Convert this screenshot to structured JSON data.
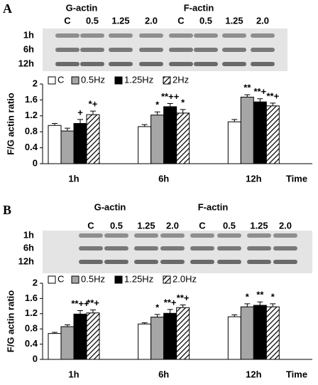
{
  "chart_data": [
    {
      "type": "bar",
      "panel_label": "A",
      "blot": {
        "groups": [
          "G-actin",
          "F-actin"
        ],
        "lanes": [
          "C",
          "0.5",
          "1.25",
          "2.0",
          "C",
          "0.5",
          "1.25",
          "2.0"
        ],
        "rows": [
          "1h",
          "6h",
          "12h"
        ]
      },
      "ylabel": "F/G actin ratio",
      "xlabel": "Time",
      "categories": [
        "1h",
        "6h",
        "12h"
      ],
      "ylim": [
        0,
        2
      ],
      "yticks": [
        0,
        0.4,
        0.8,
        1.2,
        1.6,
        2
      ],
      "series": [
        {
          "name": "C",
          "color": "#ffffff",
          "values": [
            0.96,
            0.93,
            1.05
          ],
          "errors": [
            0.05,
            0.05,
            0.06
          ],
          "annotations": [
            null,
            null,
            null
          ]
        },
        {
          "name": "0.5Hz",
          "color": "#a6a6a6",
          "values": [
            0.82,
            1.22,
            1.67
          ],
          "errors": [
            0.07,
            0.08,
            0.06
          ],
          "annotations": [
            null,
            "*",
            "**"
          ]
        },
        {
          "name": "1.25Hz",
          "color": "#000000",
          "values": [
            1.01,
            1.43,
            1.55
          ],
          "errors": [
            0.1,
            0.08,
            0.08
          ],
          "annotations": [
            "+",
            "**++",
            "**+"
          ]
        },
        {
          "name": "2Hz",
          "color": "#000000",
          "pattern": "hatch",
          "values": [
            1.23,
            1.27,
            1.45
          ],
          "errors": [
            0.09,
            0.09,
            0.07
          ],
          "annotations": [
            "*+",
            "*",
            "**+"
          ]
        }
      ]
    },
    {
      "type": "bar",
      "panel_label": "B",
      "blot": {
        "groups": [
          "G-actin",
          "F-actin"
        ],
        "lanes": [
          "C",
          "0.5",
          "1.25",
          "2.0",
          "C",
          "0.5",
          "1.25",
          "2.0"
        ],
        "rows": [
          "1h",
          "6h",
          "12h"
        ]
      },
      "ylabel": "F/G actin ratio",
      "xlabel": "Time",
      "categories": [
        "1h",
        "6h",
        "12h"
      ],
      "ylim": [
        0,
        2
      ],
      "yticks": [
        0,
        0.4,
        0.8,
        1.2,
        1.6,
        2
      ],
      "series": [
        {
          "name": "C",
          "color": "#ffffff",
          "values": [
            0.68,
            0.93,
            1.12
          ],
          "errors": [
            0.03,
            0.03,
            0.05
          ],
          "annotations": [
            null,
            null,
            null
          ]
        },
        {
          "name": "0.5Hz",
          "color": "#a6a6a6",
          "values": [
            0.86,
            1.11,
            1.38
          ],
          "errors": [
            0.05,
            0.07,
            0.08
          ],
          "annotations": [
            null,
            "*",
            "*"
          ]
        },
        {
          "name": "1.25Hz",
          "color": "#000000",
          "values": [
            1.19,
            1.21,
            1.42
          ],
          "errors": [
            0.09,
            0.1,
            0.09
          ],
          "annotations": [
            "**++",
            "**+",
            "**"
          ]
        },
        {
          "name": "2.0Hz",
          "color": "#000000",
          "pattern": "hatch",
          "values": [
            1.22,
            1.36,
            1.38
          ],
          "errors": [
            0.08,
            0.07,
            0.08
          ],
          "annotations": [
            "**+",
            "**+",
            "*"
          ]
        }
      ]
    }
  ]
}
